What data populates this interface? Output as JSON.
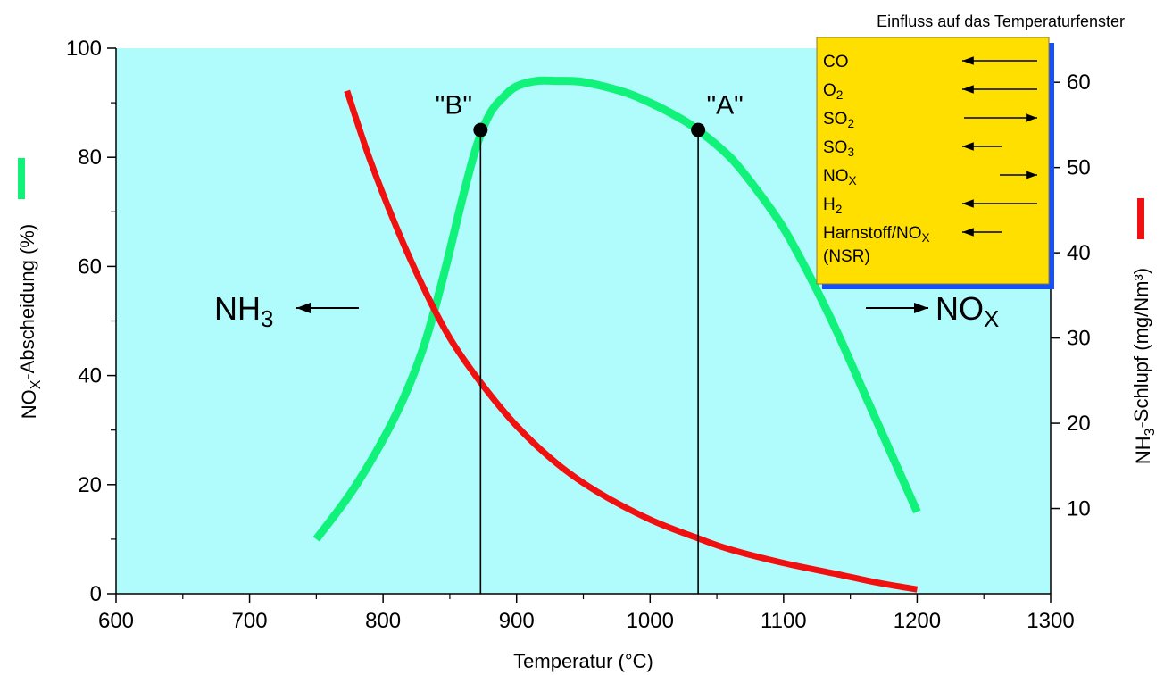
{
  "chart_data": {
    "type": "line",
    "title": "",
    "xlabel": "Temperatur (°C)",
    "xlim": [
      600,
      1300
    ],
    "x_ticks": [
      600,
      700,
      800,
      900,
      1000,
      1100,
      1200,
      1300
    ],
    "ylabel_left": {
      "main": "NO",
      "sub": "X",
      "rest": "-Abscheidung (%)"
    },
    "ylim_left": [
      0,
      100
    ],
    "y_ticks_left": [
      0,
      20,
      40,
      60,
      80,
      100
    ],
    "ylabel_right": {
      "main": "NH",
      "sub": "3",
      "rest": "-Schlupf (mg/Nm³)"
    },
    "ylim_right": [
      0,
      64
    ],
    "y_ticks_right": [
      10,
      20,
      30,
      40,
      50,
      60
    ],
    "grid": false,
    "colors": {
      "plot_bg": "#b0fcfc",
      "nox_line": "#11f27a",
      "nh3_line": "#f01010",
      "panel_bg": "#ffdf00",
      "panel_border": "#1450ff"
    },
    "series": [
      {
        "key": "nox",
        "axis": "left",
        "x": [
          750,
          780,
          810,
          830,
          845,
          860,
          870,
          880,
          890,
          900,
          915,
          930,
          950,
          980,
          1000,
          1020,
          1036,
          1060,
          1080,
          1100,
          1120,
          1140,
          1160,
          1180,
          1200
        ],
        "y": [
          10,
          20,
          33,
          45,
          58,
          73,
          82,
          88,
          91,
          93,
          94,
          94,
          93.8,
          92,
          90,
          87.5,
          85,
          80,
          74,
          67,
          58,
          48,
          37,
          26,
          15
        ]
      },
      {
        "key": "nh3",
        "axis": "right",
        "x": [
          773,
          790,
          810,
          830,
          850,
          873,
          900,
          930,
          960,
          1000,
          1036,
          1060,
          1100,
          1140,
          1170,
          1200
        ],
        "y": [
          59,
          51,
          43,
          36,
          30,
          24.8,
          19.7,
          15.3,
          12,
          8.7,
          6.5,
          5.2,
          3.6,
          2.3,
          1.3,
          0.5
        ]
      }
    ],
    "points": [
      {
        "label": "\"B\"",
        "x": 873,
        "y": 85
      },
      {
        "label": "\"A\"",
        "x": 1036,
        "y": 85
      }
    ],
    "direction_labels": [
      {
        "text": "NH",
        "sub": "3",
        "arrow": "left"
      },
      {
        "text": "NO",
        "sub": "X",
        "arrow": "right"
      }
    ]
  },
  "factors_panel": {
    "title": "Einfluss auf das Temperaturfenster",
    "items": [
      {
        "main": "CO",
        "sub": "",
        "arrow": "left-long"
      },
      {
        "main": "O",
        "sub": "2",
        "arrow": "left-long"
      },
      {
        "main": "SO",
        "sub": "2",
        "arrow": "right-long"
      },
      {
        "main": "SO",
        "sub": "3",
        "arrow": "left-short"
      },
      {
        "main": "NO",
        "sub": "X",
        "arrow": "right-short"
      },
      {
        "main": "H",
        "sub": "2",
        "arrow": "left-long"
      },
      {
        "main": "Harnstoff/NO",
        "sub": "X",
        "arrow": "left-short",
        "line2": "(NSR)"
      }
    ]
  }
}
